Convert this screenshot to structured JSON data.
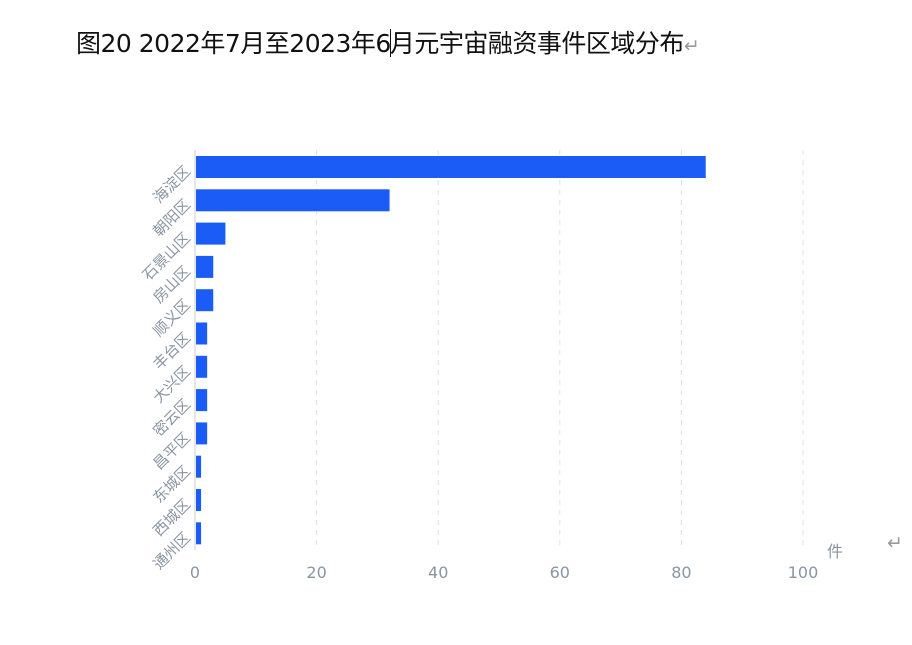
{
  "caption": {
    "before_cursor": "图20 2022年7月至2023年6",
    "after_cursor": "月元宇宙融资事件区域分布",
    "return_mark": "↵"
  },
  "end_mark": "↵",
  "chart_data": {
    "type": "bar",
    "orientation": "horizontal",
    "categories": [
      "海淀区",
      "朝阳区",
      "石景山区",
      "房山区",
      "顺义区",
      "丰台区",
      "大兴区",
      "密云区",
      "昌平区",
      "东城区",
      "西城区",
      "通州区"
    ],
    "values": [
      84,
      32,
      5,
      3,
      3,
      2,
      2,
      2,
      2,
      1,
      1,
      1
    ],
    "xlim": [
      0,
      100
    ],
    "xticks": [
      0,
      20,
      40,
      60,
      80,
      100
    ],
    "unit": "件",
    "grid": "vertical-dashed",
    "bar_color": "#1a5cf5"
  }
}
